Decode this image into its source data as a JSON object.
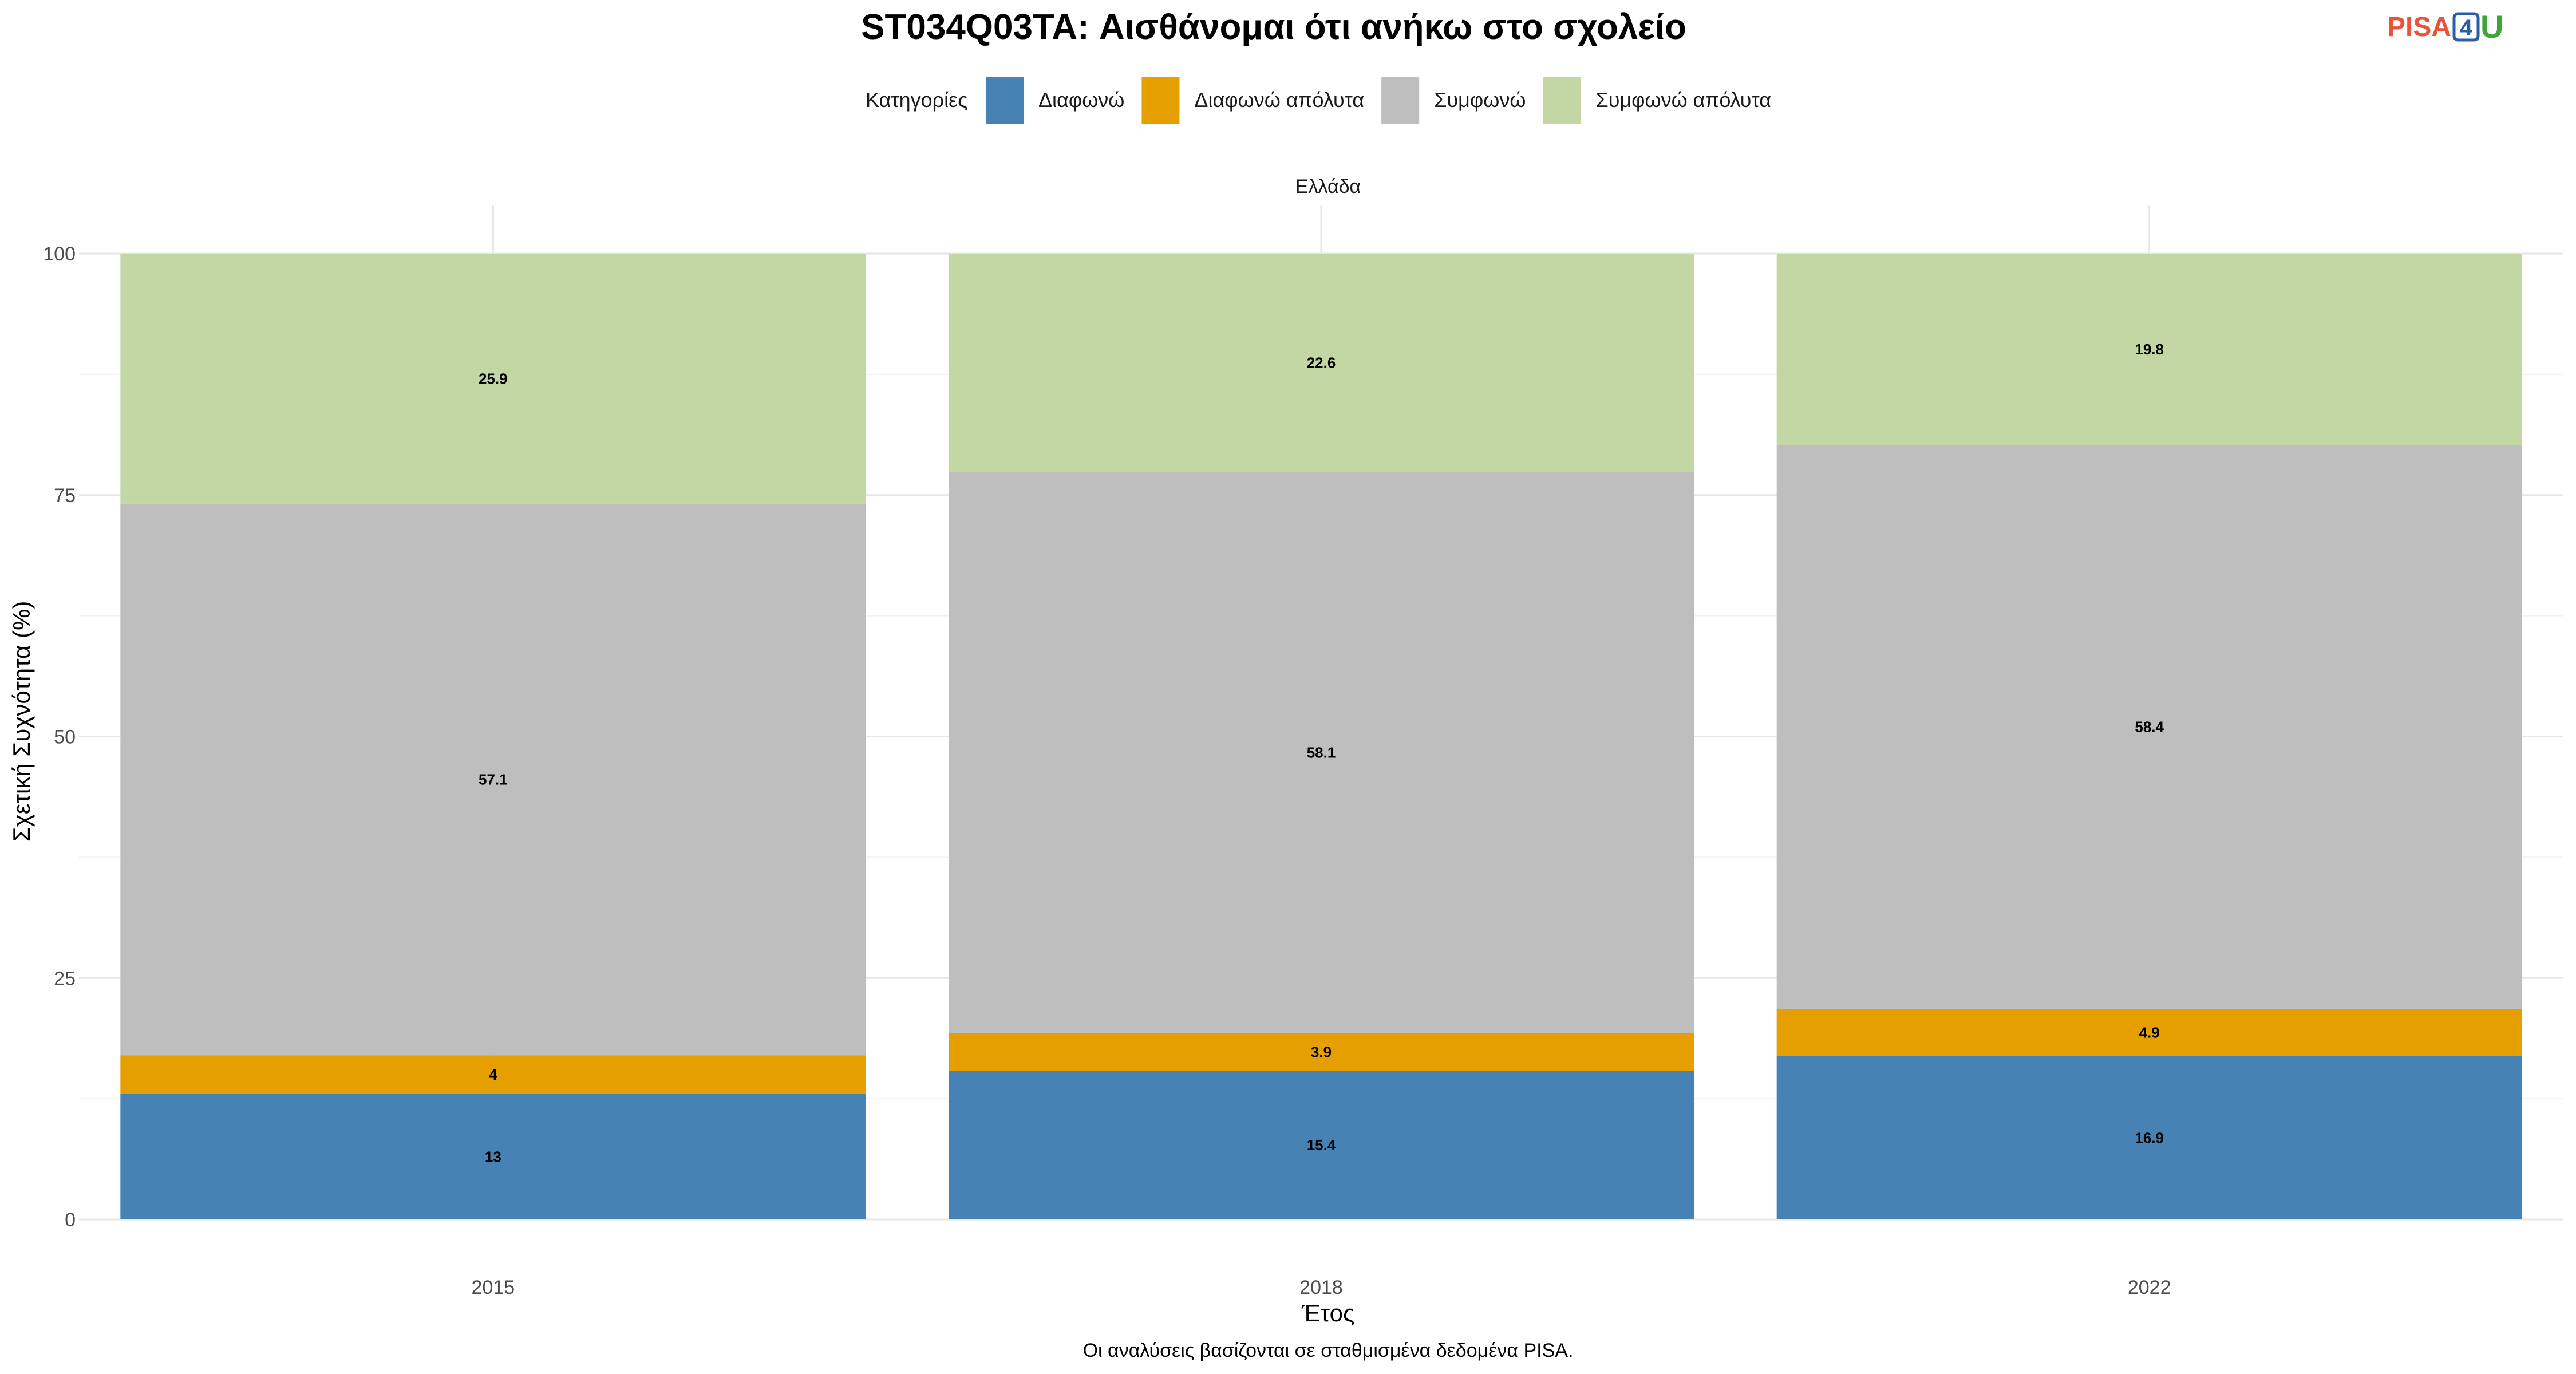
{
  "chart_data": {
    "type": "bar",
    "stacked": true,
    "title": "ST034Q03TA: Αισθάνομαι ότι ανήκω στο σχολείο",
    "facet": "Ελλάδα",
    "xlabel": "Έτος",
    "ylabel": "Σχετική Συχνότητα (%)",
    "caption": "Οι αναλύσεις βασίζονται σε σταθμισμένα δεδομένα PISA.",
    "legend_title": "Κατηγορίες",
    "legend_position": "top",
    "categories": [
      "2015",
      "2018",
      "2022"
    ],
    "ylim": [
      0,
      100
    ],
    "yticks": [
      0,
      25,
      50,
      75,
      100
    ],
    "grid": true,
    "series": [
      {
        "name": "Διαφωνώ",
        "color": "#4682b4",
        "values": [
          13,
          15.4,
          16.9
        ],
        "labels": [
          "13",
          "15.4",
          "16.9"
        ]
      },
      {
        "name": "Διαφωνώ απόλυτα",
        "color": "#e69f00",
        "values": [
          4,
          3.9,
          4.9
        ],
        "labels": [
          "4",
          "3.9",
          "4.9"
        ]
      },
      {
        "name": "Συμφωνώ",
        "color": "#bebebe",
        "values": [
          57.1,
          58.1,
          58.4
        ],
        "labels": [
          "57.1",
          "58.1",
          "58.4"
        ]
      },
      {
        "name": "Συμφωνώ απόλυτα",
        "color": "#c3d7a4",
        "values": [
          25.9,
          22.6,
          19.8
        ],
        "labels": [
          "25.9",
          "22.6",
          "19.8"
        ]
      }
    ]
  },
  "logo": {
    "part1": "PISA",
    "part2": "4",
    "part3": "U"
  }
}
